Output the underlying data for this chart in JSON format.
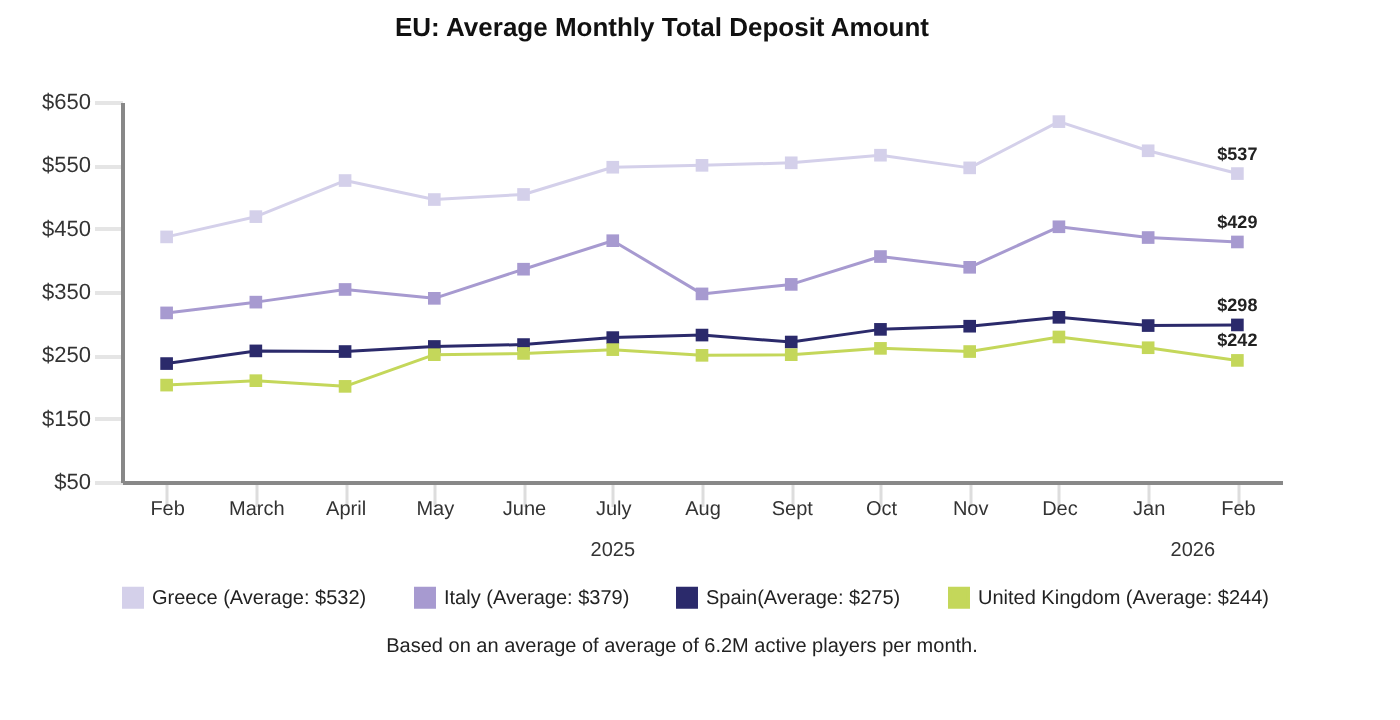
{
  "chart_data": {
    "type": "line",
    "title": "EU: Average Monthly Total Deposit Amount",
    "categories": [
      "Feb",
      "March",
      "April",
      "May",
      "June",
      "July",
      "Aug",
      "Sept",
      "Oct",
      "Nov",
      "Dec",
      "Jan",
      "Feb"
    ],
    "series": [
      {
        "name": "Greece (Average: $532)",
        "color": "#d4d0ea",
        "values": [
          437,
          469,
          526,
          496,
          504,
          547,
          550,
          554,
          566,
          546,
          619,
          573,
          537
        ],
        "value_labels": [
          null,
          null,
          null,
          null,
          null,
          null,
          null,
          null,
          null,
          null,
          null,
          null,
          "$537"
        ]
      },
      {
        "name": "Italy (Average: $379)",
        "color": "#a79ad0",
        "values": [
          317,
          334,
          354,
          340,
          386,
          431,
          347,
          362,
          406,
          389,
          453,
          436,
          429
        ],
        "value_labels": [
          null,
          null,
          null,
          null,
          null,
          null,
          null,
          null,
          null,
          null,
          null,
          null,
          "$429"
        ]
      },
      {
        "name": "Spain(Average: $275)",
        "color": "#2b2a6b",
        "values": [
          237,
          257,
          256,
          264,
          267,
          278,
          282,
          271,
          291,
          296,
          310,
          297,
          298
        ],
        "value_labels": [
          null,
          null,
          null,
          null,
          null,
          null,
          null,
          null,
          null,
          null,
          null,
          null,
          "$298"
        ]
      },
      {
        "name": "United Kingdom (Average: $244)",
        "color": "#c4d75a",
        "values": [
          203,
          210,
          201,
          251,
          253,
          259,
          250,
          251,
          261,
          256,
          279,
          262,
          242
        ],
        "value_labels": [
          null,
          null,
          null,
          null,
          null,
          null,
          null,
          null,
          null,
          null,
          null,
          null,
          "$242"
        ]
      }
    ],
    "ylim": [
      50,
      650
    ],
    "yticks": [
      {
        "value": 50,
        "label": "$50"
      },
      {
        "value": 150,
        "label": "$150"
      },
      {
        "value": 250,
        "label": "$250"
      },
      {
        "value": 350,
        "label": "$350"
      },
      {
        "value": 450,
        "label": "$450"
      },
      {
        "value": 550,
        "label": "$550"
      },
      {
        "value": 650,
        "label": "$650"
      }
    ],
    "annotations": [
      "2025",
      "2026",
      "Based on an average of average of 6.2M active players per month."
    ],
    "legend": "bottom",
    "marker": "square",
    "line_style": "solid",
    "grid": false
  }
}
